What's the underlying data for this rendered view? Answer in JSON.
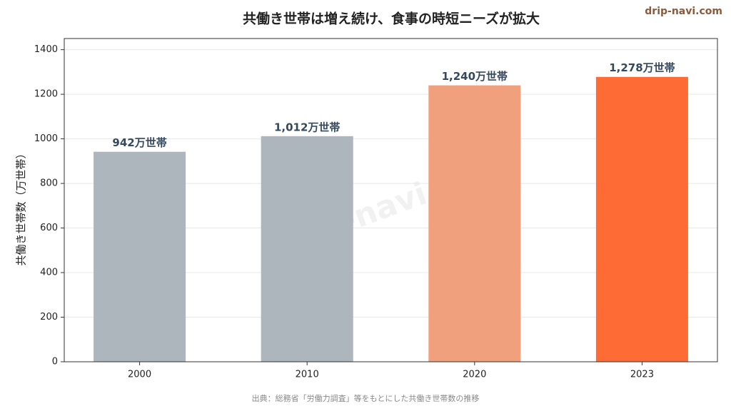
{
  "chart_data": {
    "type": "bar",
    "title": "共働き世帯は増え続け、食事の時短ニーズが拡大",
    "brand": "drip-navi.com",
    "watermark": "drip-navi.com",
    "y_label": "共働き世帯数（万世帯）",
    "source": "出典：総務省「労働力調査」等をもとにした共働き世帯数の推移",
    "categories": [
      "2000",
      "2010",
      "2020",
      "2023"
    ],
    "values": [
      942,
      1012,
      1240,
      1278
    ],
    "value_labels": [
      "942万世帯",
      "1,012万世帯",
      "1,240万世帯",
      "1,278万世帯"
    ],
    "colors": [
      "#adb5bd",
      "#adb5bd",
      "#f0a07c",
      "#ff6b35"
    ],
    "ylim": [
      0,
      1450
    ],
    "yticks": [
      0,
      200,
      400,
      600,
      800,
      1000,
      1200,
      1400
    ],
    "grid": true
  }
}
